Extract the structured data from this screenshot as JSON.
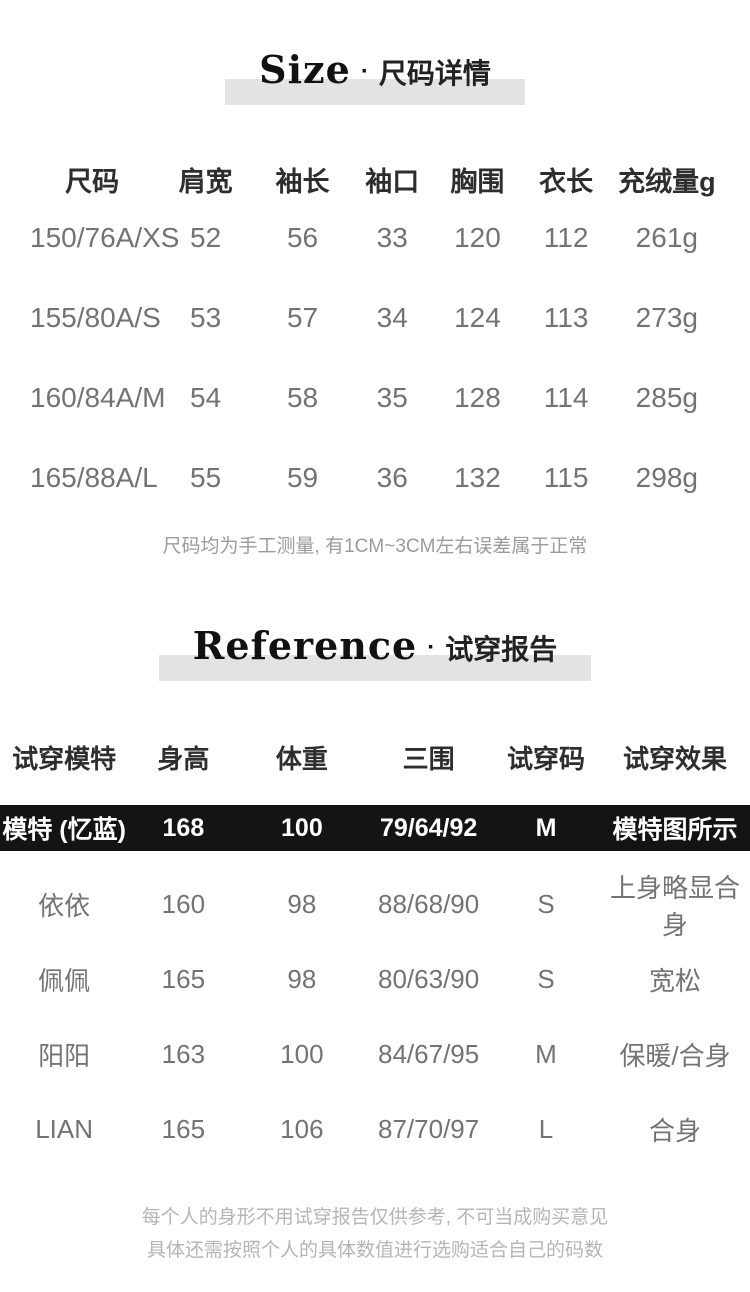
{
  "colors": {
    "highlight_bar": "#e3e3e3",
    "header_text": "#2e2e2e",
    "data_text": "#737373",
    "note_text": "#9b9b9b",
    "footer_text": "#b5b5b5",
    "model_row_bg": "#141414",
    "model_row_text": "#ffffff"
  },
  "size_section": {
    "title_en": "Size",
    "title_sep": "·",
    "title_cn": "尺码详情",
    "table": {
      "headers": [
        "尺码",
        "肩宽",
        "袖长",
        "袖口",
        "胸围",
        "衣长",
        "充绒量g"
      ],
      "rows": [
        [
          "150/76A/XS",
          "52",
          "56",
          "33",
          "120",
          "112",
          "261g"
        ],
        [
          "155/80A/S",
          "53",
          "57",
          "34",
          "124",
          "113",
          "273g"
        ],
        [
          "160/84A/M",
          "54",
          "58",
          "35",
          "128",
          "114",
          "285g"
        ],
        [
          "165/88A/L",
          "55",
          "59",
          "36",
          "132",
          "115",
          "298g"
        ]
      ]
    },
    "note": "尺码均为手工测量, 有1CM~3CM左右误差属于正常"
  },
  "reference_section": {
    "title_en": "Reference",
    "title_sep": "·",
    "title_cn": "试穿报告",
    "table": {
      "headers": [
        "试穿模特",
        "身高",
        "体重",
        "三围",
        "试穿码",
        "试穿效果"
      ],
      "model_row": [
        "模特 (忆蓝)",
        "168",
        "100",
        "79/64/92",
        "M",
        "模特图所示"
      ],
      "rows": [
        [
          "依依",
          "160",
          "98",
          "88/68/90",
          "S",
          "上身略显合身"
        ],
        [
          "佩佩",
          "165",
          "98",
          "80/63/90",
          "S",
          "宽松"
        ],
        [
          "阳阳",
          "163",
          "100",
          "84/67/95",
          "M",
          "保暖/合身"
        ],
        [
          "LIAN",
          "165",
          "106",
          "87/70/97",
          "L",
          "合身"
        ]
      ]
    },
    "notes": [
      "每个人的身形不用试穿报告仅供参考, 不可当成购买意见",
      "具体还需按照个人的具体数值进行选购适合自己的码数"
    ]
  }
}
